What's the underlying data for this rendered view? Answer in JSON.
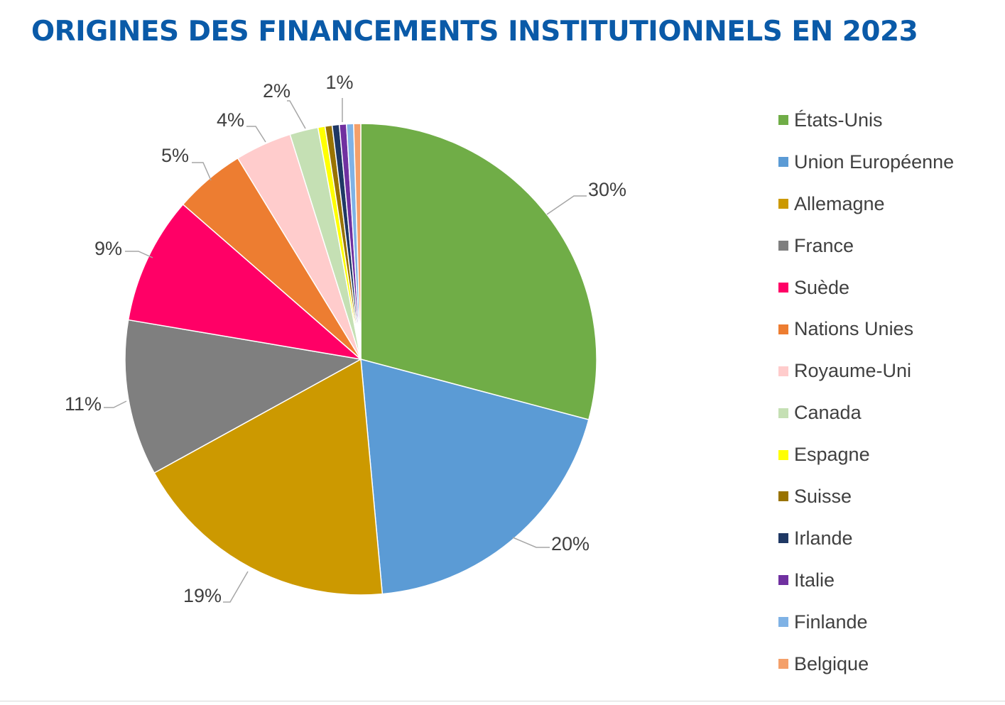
{
  "chart_data": {
    "type": "pie",
    "title": "ORIGINES DES FINANCEMENTS INSTITUTIONNELS EN 2023",
    "legend_position": "right",
    "slices": [
      {
        "name": "États-Unis",
        "value": 30,
        "label": "30%",
        "color": "#70ad47"
      },
      {
        "name": "Union Européenne",
        "value": 20,
        "label": "20%",
        "color": "#5b9bd5"
      },
      {
        "name": "Allemagne",
        "value": 19,
        "label": "19%",
        "color": "#cc9900"
      },
      {
        "name": "France",
        "value": 11,
        "label": "11%",
        "color": "#7f7f7f"
      },
      {
        "name": "Suède",
        "value": 9,
        "label": "9%",
        "color": "#ff0066"
      },
      {
        "name": "Nations Unies",
        "value": 5,
        "label": "5%",
        "color": "#ed7d31"
      },
      {
        "name": "Royaume-Uni",
        "value": 4,
        "label": "4%",
        "color": "#ffcccc"
      },
      {
        "name": "Canada",
        "value": 2,
        "label": "2%",
        "color": "#c5e0b4"
      },
      {
        "name": "Espagne",
        "value": 0.5,
        "label": "",
        "color": "#ffff00"
      },
      {
        "name": "Suisse",
        "value": 0.5,
        "label": "",
        "color": "#997300"
      },
      {
        "name": "Irlande",
        "value": 0.5,
        "label": "",
        "color": "#1f3864"
      },
      {
        "name": "Italie",
        "value": 0.5,
        "label": "1%",
        "color": "#7030a0"
      },
      {
        "name": "Finlande",
        "value": 0.5,
        "label": "",
        "color": "#7fb2e5"
      },
      {
        "name": "Belgique",
        "value": 0.5,
        "label": "",
        "color": "#f4a06a"
      }
    ]
  }
}
